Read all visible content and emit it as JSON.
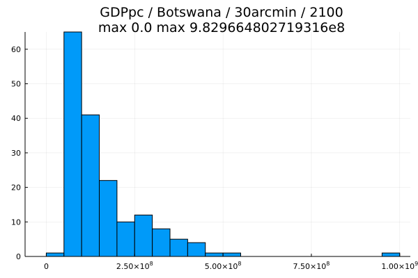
{
  "chart_data": {
    "type": "bar",
    "title_line1": "GDPpc / Botswana / 30arcmin / 2100",
    "title_line2": "max 0.0  max 9.829664802719316e8",
    "xlabel": "",
    "ylabel": "",
    "xlim": [
      -60000000,
      1030000000
    ],
    "ylim": [
      0,
      65
    ],
    "grid": true,
    "legend": "none",
    "bar_color": "#009af9",
    "bin_width": 50000000,
    "bins": [
      {
        "start": 0,
        "count": 1
      },
      {
        "start": 50000000,
        "count": 65
      },
      {
        "start": 100000000,
        "count": 41
      },
      {
        "start": 150000000,
        "count": 22
      },
      {
        "start": 200000000,
        "count": 10
      },
      {
        "start": 250000000,
        "count": 12
      },
      {
        "start": 300000000,
        "count": 8
      },
      {
        "start": 350000000,
        "count": 5
      },
      {
        "start": 400000000,
        "count": 4
      },
      {
        "start": 450000000,
        "count": 1
      },
      {
        "start": 500000000,
        "count": 1
      },
      {
        "start": 950000000,
        "count": 1
      }
    ],
    "x_ticks": [
      {
        "value": 0,
        "mantissa": "0",
        "exp": ""
      },
      {
        "value": 250000000,
        "mantissa": "2.50×10",
        "exp": "8"
      },
      {
        "value": 500000000,
        "mantissa": "5.00×10",
        "exp": "8"
      },
      {
        "value": 750000000,
        "mantissa": "7.50×10",
        "exp": "8"
      },
      {
        "value": 1000000000,
        "mantissa": "1.00×10",
        "exp": "9"
      }
    ],
    "y_ticks": [
      0,
      10,
      20,
      30,
      40,
      50,
      60
    ]
  }
}
